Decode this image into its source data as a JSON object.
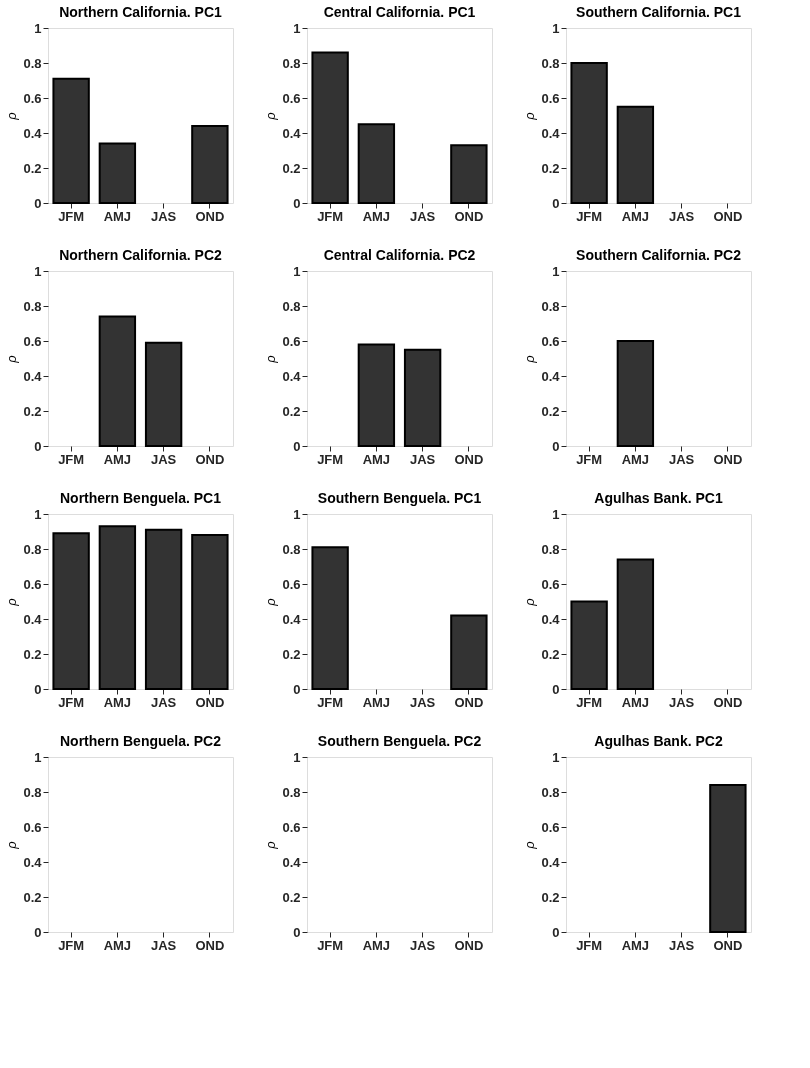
{
  "chart_data": [
    {
      "type": "bar",
      "title": "Northern California. PC1",
      "ylabel": "ρ",
      "categories": [
        "JFM",
        "AMJ",
        "JAS",
        "OND"
      ],
      "values": [
        0.71,
        0.34,
        0,
        0.44
      ],
      "color": "#333333",
      "ylim": [
        0,
        1
      ],
      "yticks": [
        0,
        0.2,
        0.4,
        0.6,
        0.8,
        1
      ]
    },
    {
      "type": "bar",
      "title": "Central California. PC1",
      "ylabel": "ρ",
      "categories": [
        "JFM",
        "AMJ",
        "JAS",
        "OND"
      ],
      "values": [
        0.86,
        0.45,
        0,
        0.33
      ],
      "color": "#333333",
      "ylim": [
        0,
        1
      ],
      "yticks": [
        0,
        0.2,
        0.4,
        0.6,
        0.8,
        1
      ]
    },
    {
      "type": "bar",
      "title": "Southern California. PC1",
      "ylabel": "ρ",
      "categories": [
        "JFM",
        "AMJ",
        "JAS",
        "OND"
      ],
      "values": [
        0.8,
        0.55,
        0,
        0
      ],
      "color": "#333333",
      "ylim": [
        0,
        1
      ],
      "yticks": [
        0,
        0.2,
        0.4,
        0.6,
        0.8,
        1
      ]
    },
    {
      "type": "bar",
      "title": "Northern California. PC2",
      "ylabel": "ρ",
      "categories": [
        "JFM",
        "AMJ",
        "JAS",
        "OND"
      ],
      "values": [
        0,
        0.74,
        0.59,
        0
      ],
      "color": "#333333",
      "ylim": [
        0,
        1
      ],
      "yticks": [
        0,
        0.2,
        0.4,
        0.6,
        0.8,
        1
      ]
    },
    {
      "type": "bar",
      "title": "Central California. PC2",
      "ylabel": "ρ",
      "categories": [
        "JFM",
        "AMJ",
        "JAS",
        "OND"
      ],
      "values": [
        0,
        0.58,
        0.55,
        0
      ],
      "color": "#333333",
      "ylim": [
        0,
        1
      ],
      "yticks": [
        0,
        0.2,
        0.4,
        0.6,
        0.8,
        1
      ]
    },
    {
      "type": "bar",
      "title": "Southern California. PC2",
      "ylabel": "ρ",
      "categories": [
        "JFM",
        "AMJ",
        "JAS",
        "OND"
      ],
      "values": [
        0,
        0.6,
        0,
        0
      ],
      "color": "#333333",
      "ylim": [
        0,
        1
      ],
      "yticks": [
        0,
        0.2,
        0.4,
        0.6,
        0.8,
        1
      ]
    },
    {
      "type": "bar",
      "title": "Northern Benguela. PC1",
      "ylabel": "ρ",
      "categories": [
        "JFM",
        "AMJ",
        "JAS",
        "OND"
      ],
      "values": [
        0.89,
        0.93,
        0.91,
        0.88
      ],
      "color": "#333333",
      "ylim": [
        0,
        1
      ],
      "yticks": [
        0,
        0.2,
        0.4,
        0.6,
        0.8,
        1
      ]
    },
    {
      "type": "bar",
      "title": "Southern Benguela. PC1",
      "ylabel": "ρ",
      "categories": [
        "JFM",
        "AMJ",
        "JAS",
        "OND"
      ],
      "values": [
        0.81,
        0,
        0,
        0.42
      ],
      "color": "#333333",
      "ylim": [
        0,
        1
      ],
      "yticks": [
        0,
        0.2,
        0.4,
        0.6,
        0.8,
        1
      ]
    },
    {
      "type": "bar",
      "title": "Agulhas Bank. PC1",
      "ylabel": "ρ",
      "categories": [
        "JFM",
        "AMJ",
        "JAS",
        "OND"
      ],
      "values": [
        0.5,
        0.74,
        0,
        0
      ],
      "color": "#333333",
      "ylim": [
        0,
        1
      ],
      "yticks": [
        0,
        0.2,
        0.4,
        0.6,
        0.8,
        1
      ]
    },
    {
      "type": "bar",
      "title": "Northern Benguela. PC2",
      "ylabel": "ρ",
      "categories": [
        "JFM",
        "AMJ",
        "JAS",
        "OND"
      ],
      "values": [
        0,
        0,
        0,
        0
      ],
      "color": "#333333",
      "ylim": [
        0,
        1
      ],
      "yticks": [
        0,
        0.2,
        0.4,
        0.6,
        0.8,
        1
      ]
    },
    {
      "type": "bar",
      "title": "Southern Benguela. PC2",
      "ylabel": "ρ",
      "categories": [
        "JFM",
        "AMJ",
        "JAS",
        "OND"
      ],
      "values": [
        0,
        0,
        0,
        0
      ],
      "color": "#333333",
      "ylim": [
        0,
        1
      ],
      "yticks": [
        0,
        0.2,
        0.4,
        0.6,
        0.8,
        1
      ]
    },
    {
      "type": "bar",
      "title": "Agulhas Bank. PC2",
      "ylabel": "ρ",
      "categories": [
        "JFM",
        "AMJ",
        "JAS",
        "OND"
      ],
      "values": [
        0,
        0,
        0,
        0.84
      ],
      "color": "#333333",
      "ylim": [
        0,
        1
      ],
      "yticks": [
        0,
        0.2,
        0.4,
        0.6,
        0.8,
        1
      ]
    }
  ]
}
